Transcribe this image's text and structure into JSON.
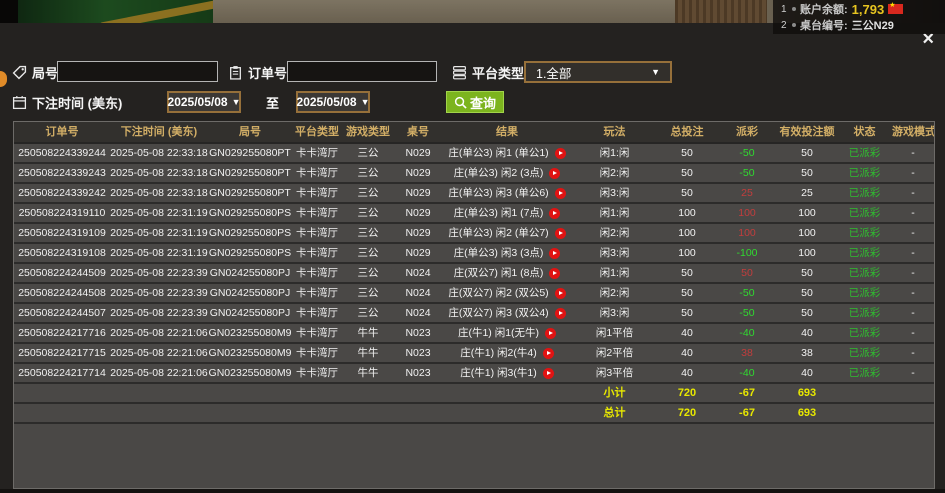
{
  "top_bar": {
    "item1_index": "1",
    "balance_label": "账户余额:",
    "balance_value": "1,793",
    "item2_index": "2",
    "table_label": "桌台编号:",
    "table_value": "三公N29",
    "flag_star": "★"
  },
  "modal": {
    "close": "×",
    "filters": {
      "round_label": "局号",
      "order_label": "订单号",
      "platform_label": "平台类型",
      "platform_value": "1.全部",
      "time_label": "下注时间 (美东)",
      "date_from": "2025/05/08",
      "to_label": "至",
      "date_to": "2025/05/08",
      "query_label": "查询",
      "caret": "▼"
    },
    "table": {
      "headers": [
        "订单号",
        "下注时间 (美东)",
        "局号",
        "平台类型",
        "游戏类型",
        "桌号",
        "结果",
        "玩法",
        "总投注",
        "派彩",
        "有效投注额",
        "状态",
        "游戏模式"
      ],
      "rows": [
        {
          "order_id": "250508224339244",
          "bet_time": "2025-05-08 22:33:18",
          "round_id": "GN029255080PT",
          "platform": "卡卡湾厅",
          "game_type": "三公",
          "table_no": "N029",
          "result": "庄(单公3) 闲1 (单公1)",
          "play": "闲1:闲",
          "total_bet": "50",
          "payout": "-50",
          "valid_bet": "50",
          "status": "已派彩",
          "mode": "-"
        },
        {
          "order_id": "250508224339243",
          "bet_time": "2025-05-08 22:33:18",
          "round_id": "GN029255080PT",
          "platform": "卡卡湾厅",
          "game_type": "三公",
          "table_no": "N029",
          "result": "庄(单公3) 闲2 (3点)",
          "play": "闲2:闲",
          "total_bet": "50",
          "payout": "-50",
          "valid_bet": "50",
          "status": "已派彩",
          "mode": "-"
        },
        {
          "order_id": "250508224339242",
          "bet_time": "2025-05-08 22:33:18",
          "round_id": "GN029255080PT",
          "platform": "卡卡湾厅",
          "game_type": "三公",
          "table_no": "N029",
          "result": "庄(单公3) 闲3 (单公6)",
          "play": "闲3:闲",
          "total_bet": "50",
          "payout": "25",
          "valid_bet": "25",
          "status": "已派彩",
          "mode": "-"
        },
        {
          "order_id": "250508224319110",
          "bet_time": "2025-05-08 22:31:19",
          "round_id": "GN029255080PS",
          "platform": "卡卡湾厅",
          "game_type": "三公",
          "table_no": "N029",
          "result": "庄(单公3) 闲1 (7点)",
          "play": "闲1:闲",
          "total_bet": "100",
          "payout": "100",
          "valid_bet": "100",
          "status": "已派彩",
          "mode": "-"
        },
        {
          "order_id": "250508224319109",
          "bet_time": "2025-05-08 22:31:19",
          "round_id": "GN029255080PS",
          "platform": "卡卡湾厅",
          "game_type": "三公",
          "table_no": "N029",
          "result": "庄(单公3) 闲2 (单公7)",
          "play": "闲2:闲",
          "total_bet": "100",
          "payout": "100",
          "valid_bet": "100",
          "status": "已派彩",
          "mode": "-"
        },
        {
          "order_id": "250508224319108",
          "bet_time": "2025-05-08 22:31:19",
          "round_id": "GN029255080PS",
          "platform": "卡卡湾厅",
          "game_type": "三公",
          "table_no": "N029",
          "result": "庄(单公3) 闲3 (3点)",
          "play": "闲3:闲",
          "total_bet": "100",
          "payout": "-100",
          "valid_bet": "100",
          "status": "已派彩",
          "mode": "-"
        },
        {
          "order_id": "250508224244509",
          "bet_time": "2025-05-08 22:23:39",
          "round_id": "GN024255080PJ",
          "platform": "卡卡湾厅",
          "game_type": "三公",
          "table_no": "N024",
          "result": "庄(双公7) 闲1 (8点)",
          "play": "闲1:闲",
          "total_bet": "50",
          "payout": "50",
          "valid_bet": "50",
          "status": "已派彩",
          "mode": "-"
        },
        {
          "order_id": "250508224244508",
          "bet_time": "2025-05-08 22:23:39",
          "round_id": "GN024255080PJ",
          "platform": "卡卡湾厅",
          "game_type": "三公",
          "table_no": "N024",
          "result": "庄(双公7) 闲2 (双公5)",
          "play": "闲2:闲",
          "total_bet": "50",
          "payout": "-50",
          "valid_bet": "50",
          "status": "已派彩",
          "mode": "-"
        },
        {
          "order_id": "250508224244507",
          "bet_time": "2025-05-08 22:23:39",
          "round_id": "GN024255080PJ",
          "platform": "卡卡湾厅",
          "game_type": "三公",
          "table_no": "N024",
          "result": "庄(双公7) 闲3 (双公4)",
          "play": "闲3:闲",
          "total_bet": "50",
          "payout": "-50",
          "valid_bet": "50",
          "status": "已派彩",
          "mode": "-"
        },
        {
          "order_id": "250508224217716",
          "bet_time": "2025-05-08 22:21:06",
          "round_id": "GN023255080M9",
          "platform": "卡卡湾厅",
          "game_type": "牛牛",
          "table_no": "N023",
          "result": "庄(牛1) 闲1(无牛)",
          "play": "闲1平倍",
          "total_bet": "40",
          "payout": "-40",
          "valid_bet": "40",
          "status": "已派彩",
          "mode": "-"
        },
        {
          "order_id": "250508224217715",
          "bet_time": "2025-05-08 22:21:06",
          "round_id": "GN023255080M9",
          "platform": "卡卡湾厅",
          "game_type": "牛牛",
          "table_no": "N023",
          "result": "庄(牛1) 闲2(牛4)",
          "play": "闲2平倍",
          "total_bet": "40",
          "payout": "38",
          "valid_bet": "38",
          "status": "已派彩",
          "mode": "-"
        },
        {
          "order_id": "250508224217714",
          "bet_time": "2025-05-08 22:21:06",
          "round_id": "GN023255080M9",
          "platform": "卡卡湾厅",
          "game_type": "牛牛",
          "table_no": "N023",
          "result": "庄(牛1) 闲3(牛1)",
          "play": "闲3平倍",
          "total_bet": "40",
          "payout": "-40",
          "valid_bet": "40",
          "status": "已派彩",
          "mode": "-"
        }
      ],
      "subtotal": {
        "label": "小计",
        "total_bet": "720",
        "payout": "-67",
        "valid_bet": "693"
      },
      "total": {
        "label": "总计",
        "total_bet": "720",
        "payout": "-67",
        "valid_bet": "693"
      }
    }
  },
  "colors": {
    "query_button_green": "#7cb41e",
    "summary_yellow": "#e8e800",
    "payout_negative_green": "#30d930",
    "payout_positive_red": "#c23d3d",
    "status_paid_green": "#2fbf2f",
    "header_gold": "#d2ae66",
    "balance_yellow": "#e8c520",
    "play_icon_red": "#e01313",
    "select_border_bronze": "#96703a"
  }
}
